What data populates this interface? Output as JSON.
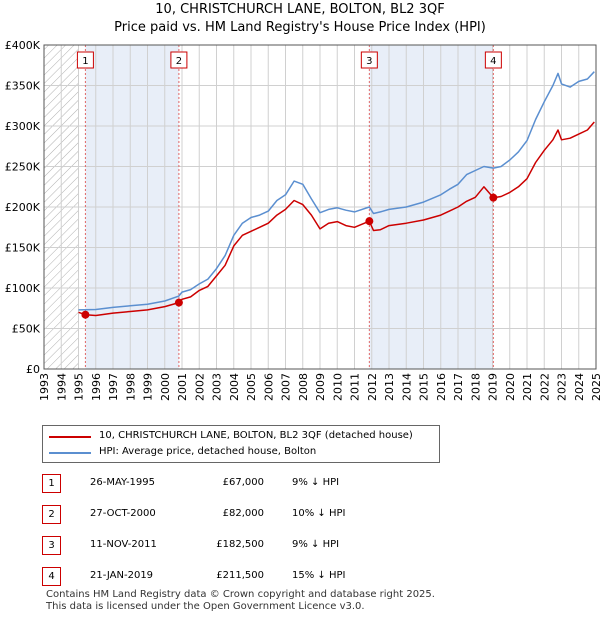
{
  "chart_data": {
    "type": "line",
    "title": "10, CHRISTCHURCH LANE, BOLTON, BL2 3QF",
    "subtitle": "Price paid vs. HM Land Registry's House Price Index (HPI)",
    "xlim": [
      1993,
      2025
    ],
    "ylim": [
      0,
      400000
    ],
    "y_ticks": [
      {
        "value": 0,
        "label": "£0"
      },
      {
        "value": 50000,
        "label": "£50K"
      },
      {
        "value": 100000,
        "label": "£100K"
      },
      {
        "value": 150000,
        "label": "£150K"
      },
      {
        "value": 200000,
        "label": "£200K"
      },
      {
        "value": 250000,
        "label": "£250K"
      },
      {
        "value": 300000,
        "label": "£300K"
      },
      {
        "value": 350000,
        "label": "£350K"
      },
      {
        "value": 400000,
        "label": "£400K"
      }
    ],
    "x_ticks": [
      "1993",
      "1994",
      "1995",
      "1996",
      "1997",
      "1998",
      "1999",
      "2000",
      "2001",
      "2002",
      "2003",
      "2004",
      "2005",
      "2006",
      "2007",
      "2008",
      "2009",
      "2010",
      "2011",
      "2012",
      "2013",
      "2014",
      "2015",
      "2016",
      "2017",
      "2018",
      "2019",
      "2020",
      "2021",
      "2022",
      "2023",
      "2024",
      "2025"
    ],
    "data_start": 1995.0,
    "series": [
      {
        "name": "10, CHRISTCHURCH LANE, BOLTON, BL2 3QF (detached house)",
        "color": "#cc0000",
        "points": [
          [
            1995.0,
            70000
          ],
          [
            1995.4,
            67000
          ],
          [
            1996.0,
            66000
          ],
          [
            1997.0,
            69000
          ],
          [
            1998.0,
            71000
          ],
          [
            1999.0,
            73000
          ],
          [
            2000.0,
            77000
          ],
          [
            2000.82,
            82000
          ],
          [
            2001.0,
            86000
          ],
          [
            2001.5,
            89000
          ],
          [
            2002.0,
            97000
          ],
          [
            2002.5,
            102000
          ],
          [
            2003.0,
            115000
          ],
          [
            2003.5,
            128000
          ],
          [
            2004.0,
            152000
          ],
          [
            2004.5,
            165000
          ],
          [
            2005.0,
            170000
          ],
          [
            2005.5,
            175000
          ],
          [
            2006.0,
            180000
          ],
          [
            2006.5,
            190000
          ],
          [
            2007.0,
            197000
          ],
          [
            2007.5,
            208000
          ],
          [
            2008.0,
            203000
          ],
          [
            2008.5,
            190000
          ],
          [
            2009.0,
            173000
          ],
          [
            2009.5,
            180000
          ],
          [
            2010.0,
            182000
          ],
          [
            2010.5,
            177000
          ],
          [
            2011.0,
            175000
          ],
          [
            2011.86,
            182500
          ],
          [
            2012.1,
            171000
          ],
          [
            2012.5,
            172000
          ],
          [
            2013.0,
            177000
          ],
          [
            2014.0,
            180000
          ],
          [
            2015.0,
            184000
          ],
          [
            2016.0,
            190000
          ],
          [
            2016.5,
            195000
          ],
          [
            2017.0,
            200000
          ],
          [
            2017.5,
            207000
          ],
          [
            2018.0,
            212000
          ],
          [
            2018.5,
            225000
          ],
          [
            2019.05,
            211500
          ],
          [
            2019.5,
            213000
          ],
          [
            2020.0,
            218000
          ],
          [
            2020.5,
            225000
          ],
          [
            2021.0,
            235000
          ],
          [
            2021.5,
            255000
          ],
          [
            2022.0,
            270000
          ],
          [
            2022.5,
            283000
          ],
          [
            2022.8,
            295000
          ],
          [
            2023.0,
            283000
          ],
          [
            2023.5,
            285000
          ],
          [
            2024.0,
            290000
          ],
          [
            2024.5,
            295000
          ],
          [
            2024.9,
            305000
          ]
        ]
      },
      {
        "name": "HPI: Average price, detached house, Bolton",
        "color": "#5b8fd0",
        "points": [
          [
            1995.0,
            73000
          ],
          [
            1996.0,
            73500
          ],
          [
            1997.0,
            76000
          ],
          [
            1998.0,
            78000
          ],
          [
            1999.0,
            80000
          ],
          [
            2000.0,
            84000
          ],
          [
            2000.82,
            90000
          ],
          [
            2001.0,
            95000
          ],
          [
            2001.5,
            98000
          ],
          [
            2002.0,
            105000
          ],
          [
            2002.5,
            111000
          ],
          [
            2003.0,
            124000
          ],
          [
            2003.5,
            140000
          ],
          [
            2004.0,
            165000
          ],
          [
            2004.5,
            180000
          ],
          [
            2005.0,
            187000
          ],
          [
            2005.5,
            190000
          ],
          [
            2006.0,
            195000
          ],
          [
            2006.5,
            208000
          ],
          [
            2007.0,
            215000
          ],
          [
            2007.5,
            232000
          ],
          [
            2008.0,
            228000
          ],
          [
            2008.5,
            210000
          ],
          [
            2009.0,
            193000
          ],
          [
            2009.5,
            197000
          ],
          [
            2010.0,
            199000
          ],
          [
            2010.5,
            196000
          ],
          [
            2011.0,
            194000
          ],
          [
            2011.86,
            200000
          ],
          [
            2012.1,
            192000
          ],
          [
            2012.5,
            194000
          ],
          [
            2013.0,
            197000
          ],
          [
            2014.0,
            200000
          ],
          [
            2015.0,
            206000
          ],
          [
            2016.0,
            215000
          ],
          [
            2016.5,
            222000
          ],
          [
            2017.0,
            228000
          ],
          [
            2017.5,
            240000
          ],
          [
            2018.0,
            245000
          ],
          [
            2018.5,
            250000
          ],
          [
            2019.05,
            248000
          ],
          [
            2019.5,
            250000
          ],
          [
            2020.0,
            258000
          ],
          [
            2020.5,
            268000
          ],
          [
            2021.0,
            282000
          ],
          [
            2021.5,
            308000
          ],
          [
            2022.0,
            330000
          ],
          [
            2022.5,
            350000
          ],
          [
            2022.8,
            365000
          ],
          [
            2023.0,
            352000
          ],
          [
            2023.5,
            348000
          ],
          [
            2024.0,
            355000
          ],
          [
            2024.5,
            358000
          ],
          [
            2024.9,
            367000
          ]
        ]
      }
    ],
    "transactions": [
      {
        "label": "1",
        "year": 1995.4,
        "price": 67000
      },
      {
        "label": "2",
        "year": 2000.82,
        "price": 82000
      },
      {
        "label": "3",
        "year": 2011.86,
        "price": 182500
      },
      {
        "label": "4",
        "year": 2019.05,
        "price": 211500
      }
    ]
  },
  "legend": {
    "property_label": "10, CHRISTCHURCH LANE, BOLTON, BL2 3QF (detached house)",
    "hpi_label": "HPI: Average price, detached house, Bolton"
  },
  "transactions_table": [
    {
      "num": "1",
      "date": "26-MAY-1995",
      "price": "£67,000",
      "hpi": "9% ↓ HPI"
    },
    {
      "num": "2",
      "date": "27-OCT-2000",
      "price": "£82,000",
      "hpi": "10% ↓ HPI"
    },
    {
      "num": "3",
      "date": "11-NOV-2011",
      "price": "£182,500",
      "hpi": "9% ↓ HPI"
    },
    {
      "num": "4",
      "date": "21-JAN-2019",
      "price": "£211,500",
      "hpi": "15% ↓ HPI"
    }
  ],
  "footer": {
    "line1": "Contains HM Land Registry data © Crown copyright and database right 2025.",
    "line2": "This data is licensed under the Open Government Licence v3.0."
  },
  "colors": {
    "property": "#cc0000",
    "hpi": "#5b8fd0",
    "shade": "#e8eef8",
    "grid": "#d0d0d0"
  }
}
